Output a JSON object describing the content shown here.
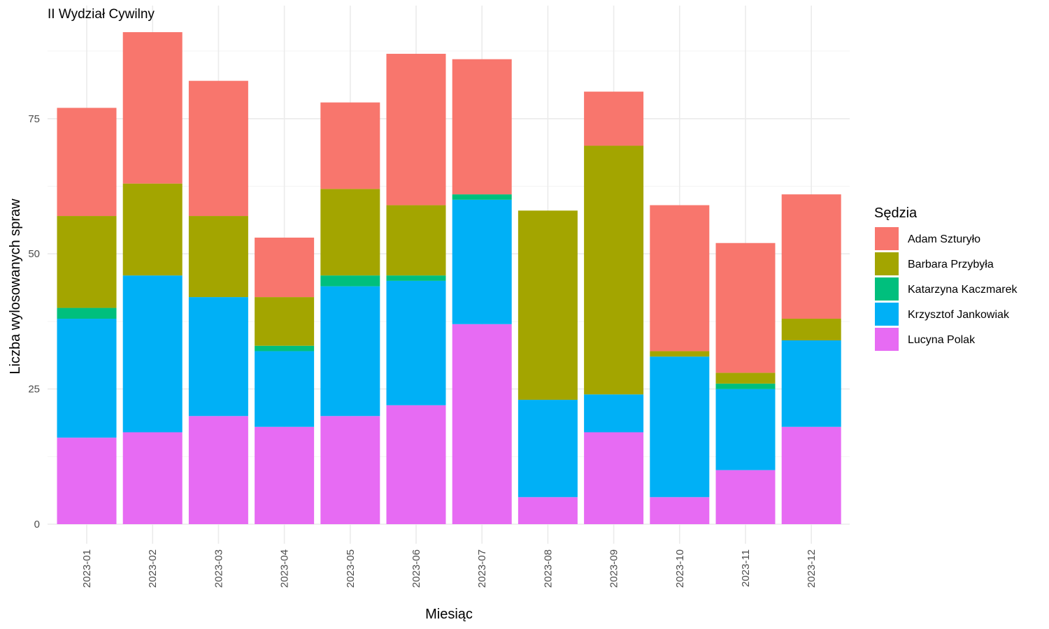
{
  "chart_data": {
    "type": "bar",
    "stacked": true,
    "title": "II Wydział Cywilny",
    "xlabel": "Miesiąc",
    "ylabel": "Liczba wylosowanych spraw",
    "ylim": [
      0,
      92
    ],
    "yticks": [
      0,
      25,
      50,
      75
    ],
    "grid": true,
    "legend_title": "Sędzia",
    "legend_position": "right",
    "categories": [
      "2023-01",
      "2023-02",
      "2023-03",
      "2023-04",
      "2023-05",
      "2023-06",
      "2023-07",
      "2023-08",
      "2023-09",
      "2023-10",
      "2023-11",
      "2023-12"
    ],
    "series": [
      {
        "name": "Lucyna Polak",
        "color": "#E76BF3",
        "values": [
          16,
          17,
          20,
          18,
          20,
          22,
          37,
          5,
          17,
          5,
          10,
          18
        ]
      },
      {
        "name": "Krzysztof Jankowiak",
        "color": "#00B0F6",
        "values": [
          22,
          29,
          22,
          14,
          24,
          23,
          23,
          18,
          7,
          26,
          15,
          16
        ]
      },
      {
        "name": "Katarzyna Kaczmarek",
        "color": "#00BF7D",
        "values": [
          2,
          0,
          0,
          1,
          2,
          1,
          1,
          0,
          0,
          0,
          1,
          0
        ]
      },
      {
        "name": "Barbara Przybyła",
        "color": "#A3A500",
        "values": [
          17,
          17,
          15,
          9,
          16,
          13,
          0,
          35,
          46,
          1,
          2,
          4
        ]
      },
      {
        "name": "Adam Szturyło",
        "color": "#F8766D",
        "values": [
          20,
          28,
          25,
          11,
          16,
          28,
          25,
          0,
          10,
          27,
          24,
          23
        ]
      }
    ],
    "legend_order": [
      "Adam Szturyło",
      "Barbara Przybyła",
      "Katarzyna Kaczmarek",
      "Krzysztof Jankowiak",
      "Lucyna Polak"
    ]
  }
}
